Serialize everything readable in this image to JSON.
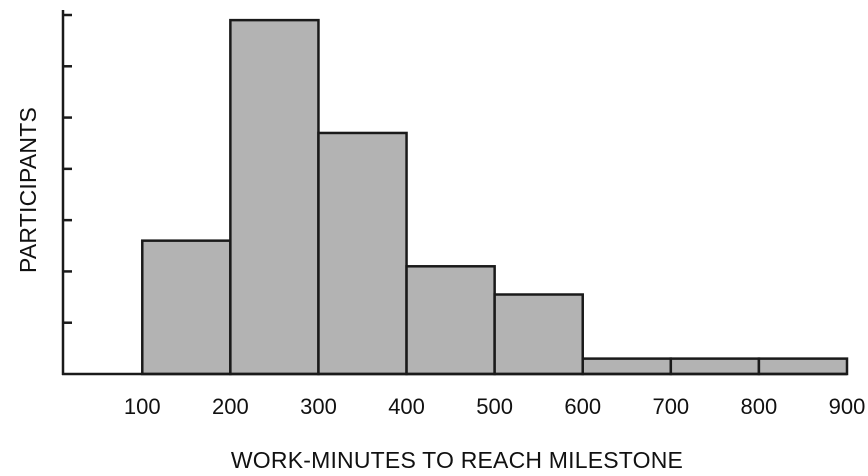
{
  "chart_data": {
    "type": "bar",
    "subtype": "histogram",
    "xlabel": "WORK-MINUTES TO REACH MILESTONE",
    "ylabel": "PARTICIPANTS",
    "x_ticks": [
      "100",
      "200",
      "300",
      "400",
      "500",
      "600",
      "700",
      "800",
      "900"
    ],
    "bins": [
      {
        "from": 100,
        "to": 200,
        "value": 2.6
      },
      {
        "from": 200,
        "to": 300,
        "value": 6.9
      },
      {
        "from": 300,
        "to": 400,
        "value": 4.7
      },
      {
        "from": 400,
        "to": 500,
        "value": 2.1
      },
      {
        "from": 500,
        "to": 600,
        "value": 1.55
      },
      {
        "from": 600,
        "to": 700,
        "value": 0.3
      },
      {
        "from": 700,
        "to": 800,
        "value": 0.3
      },
      {
        "from": 800,
        "to": 900,
        "value": 0.3
      }
    ],
    "xlim": [
      10,
      900
    ],
    "ylim": [
      0,
      7
    ],
    "y_tick_values": [
      1,
      2,
      3,
      4,
      5,
      6,
      7
    ],
    "y_tick_labels_shown": false,
    "grid": false,
    "colors": {
      "bar_fill": "#b3b3b3",
      "bar_edge": "#1a1a1a",
      "axis": "#1a1a1a"
    }
  }
}
